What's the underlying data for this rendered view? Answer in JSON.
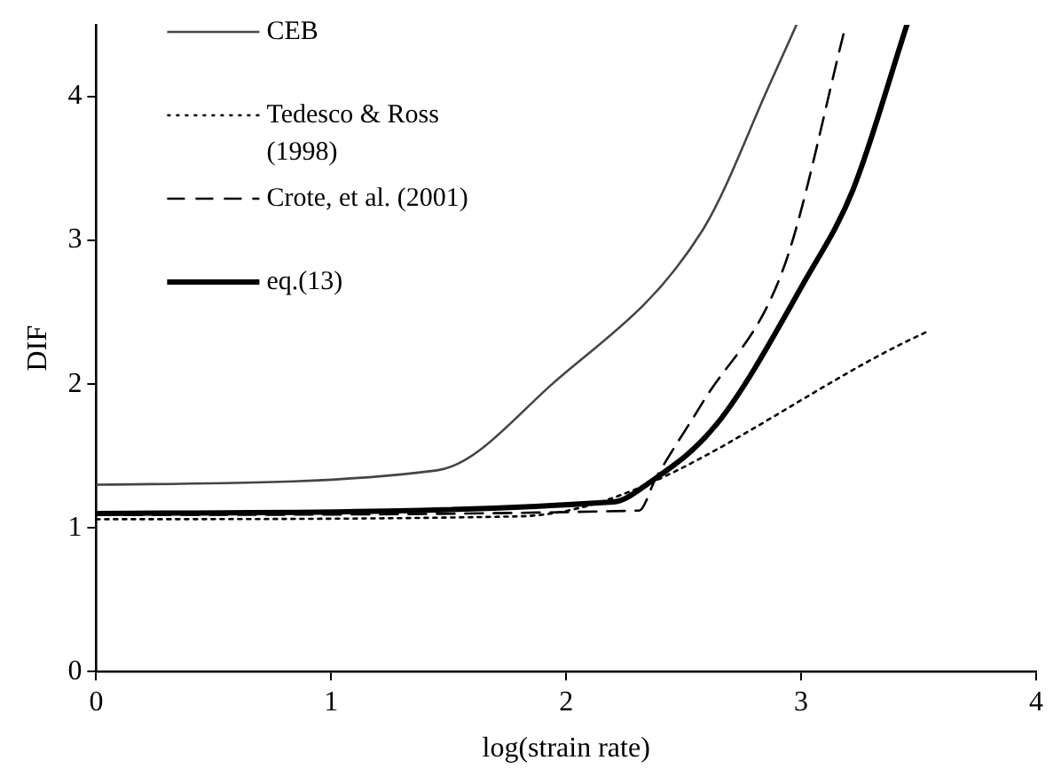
{
  "chart_data": {
    "type": "line",
    "xlabel": "log(strain rate)",
    "ylabel": "DIF",
    "xlim": [
      0,
      4
    ],
    "xticks": [
      0,
      1,
      2,
      3,
      4
    ],
    "ylim": [
      0,
      4.5
    ],
    "yticks": [
      0,
      1,
      2,
      3,
      4
    ],
    "grid": false,
    "legend": "top left",
    "marker": "none",
    "series": [
      {
        "name": "CEB",
        "color": "#444444",
        "line_style": "solid",
        "x": [
          0,
          1.45,
          1.94,
          2.58,
          2.87,
          2.98
        ],
        "values": [
          1.3,
          1.4,
          2.0,
          3.07,
          4.1,
          4.5
        ]
      },
      {
        "name": "Tedesco & Ross (1998)",
        "color": "#000000",
        "line_style": "dotted",
        "x": [
          0,
          1.8,
          3.53
        ],
        "values": [
          1.06,
          1.08,
          2.36
        ]
      },
      {
        "name": "Crote, et al. (2001)",
        "color": "#000000",
        "line_style": "dashed",
        "x": [
          0,
          2.31,
          2.38,
          2.58,
          2.93,
          3.19
        ],
        "values": [
          1.09,
          1.12,
          1.34,
          1.87,
          2.83,
          4.5
        ]
      },
      {
        "name": "eq.(13)",
        "color": "#000000",
        "line_style": "solid",
        "x": [
          0,
          2.2,
          2.35,
          2.64,
          3.02,
          3.22,
          3.45
        ],
        "values": [
          1.1,
          1.18,
          1.31,
          1.72,
          2.73,
          3.35,
          4.5
        ]
      }
    ]
  }
}
